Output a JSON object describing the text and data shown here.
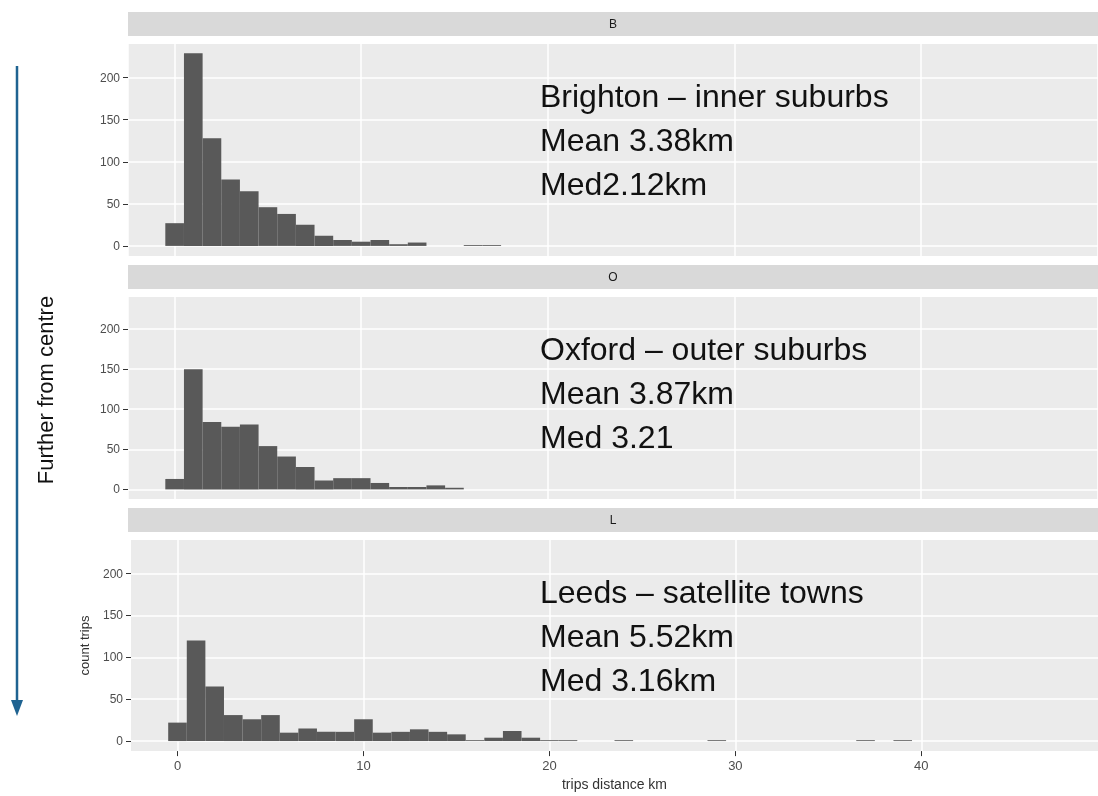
{
  "chart_data": [
    {
      "type": "histogram",
      "title": "B",
      "ylabel": "Further from centre",
      "annotations": [
        "Brighton – inner suburbs",
        "Mean 3.38km",
        "Med2.12km"
      ],
      "bins": [
        -0.5,
        0.5,
        1.5,
        2.5,
        3.5,
        4.5,
        5.5,
        6.5,
        7.5,
        8.5,
        9.5,
        10.5,
        11.5,
        12.5,
        13.5,
        14.5,
        15.5,
        16.5,
        17.5,
        18.5,
        19.5,
        20.5,
        21.5,
        22.5,
        23.5,
        24.5,
        25.5,
        26.5,
        27.5,
        28.5,
        29.5,
        30.5,
        31.5,
        32.5,
        33.5,
        34.5,
        35.5,
        36.5,
        37.5,
        38.5,
        39.5
      ],
      "values": [
        27,
        229,
        128,
        79,
        65,
        46,
        38,
        25,
        12,
        7,
        5,
        7,
        2,
        4,
        0,
        0,
        1,
        1,
        0,
        0,
        0,
        0,
        0,
        0,
        0,
        0,
        0,
        0,
        0,
        0,
        0,
        0,
        0,
        0,
        0,
        0,
        0,
        0,
        0,
        0
      ],
      "color": "#595959",
      "xlim": [
        -2.5,
        49.5
      ],
      "xticks": [
        0,
        10,
        20,
        30,
        40
      ],
      "ylim": [
        -12,
        240
      ],
      "yticks": [
        0,
        50,
        100,
        150,
        200
      ],
      "grid": true,
      "tick_labels": "y"
    },
    {
      "type": "histogram",
      "title": "O",
      "annotations": [
        "Oxford – outer suburbs",
        "Mean 3.87km",
        "Med 3.21"
      ],
      "bins": [
        -0.5,
        0.5,
        1.5,
        2.5,
        3.5,
        4.5,
        5.5,
        6.5,
        7.5,
        8.5,
        9.5,
        10.5,
        11.5,
        12.5,
        13.5,
        14.5,
        15.5,
        16.5,
        17.5,
        18.5,
        19.5,
        20.5,
        21.5,
        22.5,
        23.5,
        24.5,
        25.5,
        26.5,
        27.5,
        28.5,
        29.5,
        30.5,
        31.5,
        32.5,
        33.5,
        34.5,
        35.5,
        36.5,
        37.5,
        38.5,
        39.5
      ],
      "values": [
        13,
        150,
        84,
        78,
        81,
        54,
        41,
        28,
        11,
        14,
        14,
        8,
        3,
        3,
        5,
        2,
        0,
        0,
        0,
        0,
        0,
        0,
        0,
        0,
        0,
        0,
        0,
        0,
        0,
        0,
        0,
        0,
        0,
        0,
        0,
        0,
        0,
        0,
        0,
        0
      ],
      "color": "#595959",
      "xlim": [
        -2.5,
        49.5
      ],
      "xticks": [
        0,
        10,
        20,
        30,
        40
      ],
      "ylim": [
        -12,
        240
      ],
      "yticks": [
        0,
        50,
        100,
        150,
        200
      ],
      "grid": true,
      "tick_labels": "y"
    },
    {
      "type": "histogram",
      "title": "L",
      "xlabel": "trips distance km",
      "ylabel": "count trips",
      "annotations": [
        "Leeds – satellite towns",
        "Mean 5.52km",
        "Med 3.16km"
      ],
      "bins": [
        -0.5,
        0.5,
        1.5,
        2.5,
        3.5,
        4.5,
        5.5,
        6.5,
        7.5,
        8.5,
        9.5,
        10.5,
        11.5,
        12.5,
        13.5,
        14.5,
        15.5,
        16.5,
        17.5,
        18.5,
        19.5,
        20.5,
        21.5,
        22.5,
        23.5,
        24.5,
        25.5,
        26.5,
        27.5,
        28.5,
        29.5,
        30.5,
        31.5,
        32.5,
        33.5,
        34.5,
        35.5,
        36.5,
        37.5,
        38.5,
        39.5
      ],
      "values": [
        22,
        120,
        65,
        31,
        26,
        31,
        10,
        15,
        11,
        11,
        26,
        10,
        11,
        14,
        11,
        8,
        1,
        4,
        12,
        4,
        1,
        1,
        0,
        0,
        1,
        0,
        0,
        0,
        0,
        1,
        0,
        0,
        0,
        0,
        0,
        0,
        0,
        1,
        0,
        1
      ],
      "color": "#595959",
      "xlim": [
        -2.5,
        49.5
      ],
      "xticks": [
        0,
        10,
        20,
        30,
        40
      ],
      "ylim": [
        -12,
        240
      ],
      "yticks": [
        0,
        50,
        100,
        150,
        200
      ],
      "grid": true
    }
  ]
}
